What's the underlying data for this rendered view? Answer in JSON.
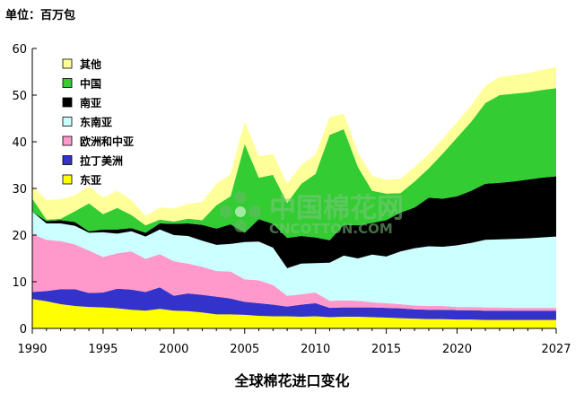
{
  "chart_data": {
    "type": "area",
    "stacked": true,
    "unit_label": "单位：百万包",
    "title": "全球棉花进口变化",
    "xlabel": "",
    "ylabel": "",
    "xlim": [
      1990,
      2027
    ],
    "ylim": [
      0,
      60
    ],
    "x_ticks": [
      1990,
      1995,
      2000,
      2005,
      2010,
      2015,
      2020,
      2027
    ],
    "y_ticks": [
      0,
      10,
      20,
      30,
      40,
      50,
      60
    ],
    "legend_position": "top-left",
    "x": [
      1990,
      1991,
      1992,
      1993,
      1994,
      1995,
      1996,
      1997,
      1998,
      1999,
      2000,
      2001,
      2002,
      2003,
      2004,
      2005,
      2006,
      2007,
      2008,
      2009,
      2010,
      2011,
      2012,
      2013,
      2014,
      2015,
      2016,
      2017,
      2018,
      2019,
      2020,
      2021,
      2022,
      2023,
      2024,
      2025,
      2026,
      2027
    ],
    "series": [
      {
        "name": "东亚",
        "color": "#ffff00",
        "values": [
          6.3,
          5.8,
          5.2,
          4.8,
          4.6,
          4.5,
          4.3,
          4.0,
          3.8,
          4.2,
          3.8,
          3.7,
          3.4,
          3.0,
          3.0,
          2.9,
          2.7,
          2.6,
          2.6,
          2.5,
          2.6,
          2.4,
          2.5,
          2.5,
          2.4,
          2.3,
          2.2,
          2.1,
          2.0,
          2.0,
          1.9,
          1.9,
          1.8,
          1.8,
          1.8,
          1.8,
          1.8,
          1.8
        ]
      },
      {
        "name": "拉丁美洲",
        "color": "#3333cc",
        "values": [
          1.5,
          2.2,
          3.2,
          3.6,
          3.0,
          3.2,
          4.2,
          4.3,
          4.0,
          4.6,
          3.2,
          3.8,
          3.8,
          3.8,
          3.4,
          2.8,
          2.7,
          2.5,
          2.1,
          2.6,
          2.8,
          2.0,
          2.0,
          2.0,
          2.1,
          2.1,
          2.1,
          2.0,
          2.0,
          2.0,
          2.0,
          2.0,
          2.0,
          2.0,
          2.0,
          2.0,
          2.0,
          2.0
        ]
      },
      {
        "name": "欧洲和中亚",
        "color": "#ff99cc",
        "values": [
          12.4,
          11.0,
          10.3,
          9.6,
          9.1,
          7.6,
          7.6,
          8.2,
          7.1,
          7.1,
          7.4,
          6.4,
          6.0,
          5.5,
          5.8,
          4.8,
          4.9,
          4.2,
          2.3,
          2.2,
          2.3,
          1.5,
          1.5,
          1.4,
          1.1,
          1.0,
          0.9,
          0.8,
          0.8,
          0.8,
          0.7,
          0.7,
          0.7,
          0.7,
          0.6,
          0.6,
          0.6,
          0.6
        ]
      },
      {
        "name": "东南亚",
        "color": "#ccffff",
        "values": [
          4.8,
          3.5,
          3.8,
          4.0,
          3.8,
          5.3,
          4.2,
          4.3,
          4.8,
          5.3,
          5.6,
          5.9,
          5.6,
          5.6,
          5.9,
          8.0,
          8.3,
          8.0,
          5.9,
          6.6,
          6.3,
          8.2,
          9.6,
          9.1,
          10.2,
          10.0,
          11.3,
          12.3,
          12.8,
          12.7,
          13.2,
          13.7,
          14.5,
          14.6,
          14.8,
          14.9,
          15.1,
          15.3
        ]
      },
      {
        "name": "南亚",
        "color": "#000000",
        "values": [
          0.0,
          0.5,
          0.7,
          0.8,
          0.3,
          0.6,
          0.9,
          0.7,
          0.8,
          1.3,
          2.4,
          2.7,
          3.4,
          3.5,
          4.2,
          2.0,
          4.8,
          5.1,
          6.5,
          5.9,
          5.5,
          4.8,
          6.6,
          7.1,
          6.8,
          7.8,
          8.3,
          8.7,
          10.4,
          10.3,
          10.5,
          11.2,
          12.0,
          12.1,
          12.3,
          12.6,
          12.8,
          12.9
        ]
      },
      {
        "name": "中国",
        "color": "#33cc33",
        "values": [
          2.8,
          0.3,
          0.3,
          2.3,
          6.0,
          3.3,
          4.6,
          2.8,
          1.6,
          0.8,
          0.5,
          1.0,
          1.0,
          5.0,
          6.0,
          19.0,
          8.9,
          10.5,
          7.5,
          11.2,
          13.6,
          22.6,
          20.5,
          12.5,
          6.9,
          5.7,
          4.2,
          5.6,
          6.3,
          9.7,
          12.6,
          14.8,
          17.3,
          18.8,
          18.8,
          18.7,
          18.8,
          18.9
        ]
      },
      {
        "name": "其他",
        "color": "#ffff99",
        "values": [
          2.7,
          4.2,
          4.2,
          3.4,
          3.7,
          3.5,
          3.7,
          3.2,
          2.0,
          2.6,
          2.8,
          3.2,
          3.9,
          4.6,
          4.7,
          4.9,
          4.6,
          4.5,
          4.1,
          4.0,
          4.1,
          3.8,
          3.3,
          3.1,
          3.2,
          3.0,
          3.1,
          3.1,
          3.1,
          3.2,
          3.3,
          3.5,
          3.7,
          3.9,
          4.0,
          4.1,
          4.3,
          4.5
        ]
      }
    ]
  },
  "watermark": {
    "brand": "中国棉花网",
    "domain": "CNCOTTON.COM"
  }
}
